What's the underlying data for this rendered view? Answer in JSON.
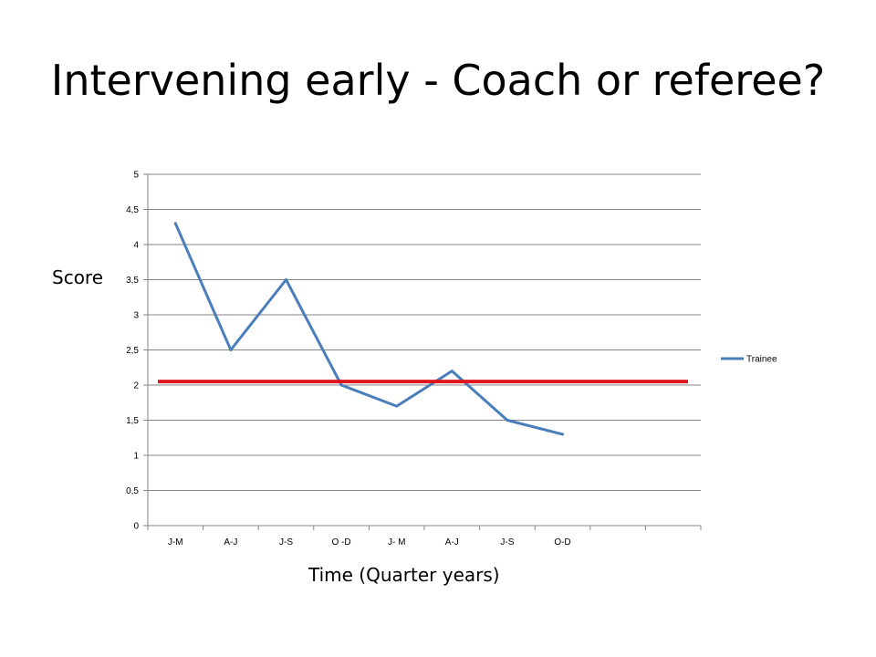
{
  "slide": {
    "title": "Intervening early - Coach or referee?"
  },
  "chart_data": {
    "type": "line",
    "title": "",
    "xlabel": "Time (Quarter years)",
    "ylabel": "Score",
    "categories": [
      "J-M",
      "A-J",
      "J-S",
      "O -D",
      "J- M",
      "A-J",
      "J-S",
      "O-D",
      "",
      ""
    ],
    "series": [
      {
        "name": "Trainee",
        "values": [
          4.3,
          2.5,
          3.5,
          2.0,
          1.7,
          2.2,
          1.5,
          1.3,
          null,
          null
        ],
        "color": "#4a7ebb"
      }
    ],
    "reference_line": {
      "value": 2.05,
      "color": "#e0141e"
    },
    "y_ticks": [
      "0",
      "0,5",
      "1",
      "1,5",
      "2",
      "2,5",
      "3",
      "3,5",
      "4",
      "4,5",
      "5"
    ],
    "ylim": [
      0,
      5
    ],
    "y_step": 0.5,
    "grid": true,
    "legend_position": "right"
  }
}
